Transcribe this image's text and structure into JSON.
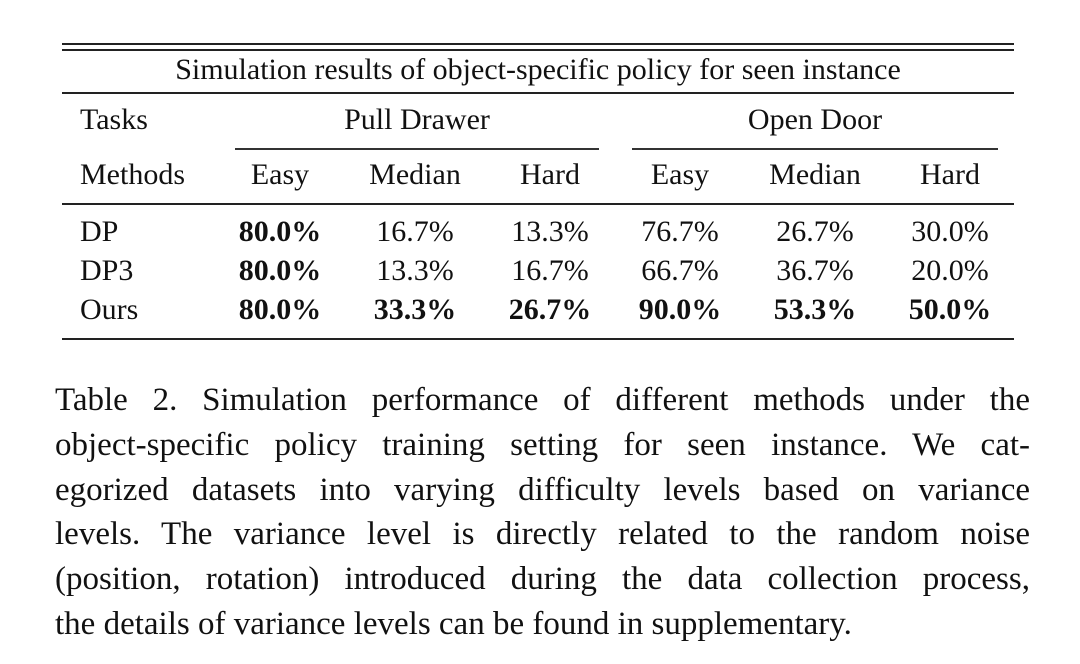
{
  "table": {
    "title": "Simulation results of object-specific policy for seen instance",
    "tasks_label": "Tasks",
    "methods_label": "Methods",
    "groups": [
      "Pull Drawer",
      "Open Door"
    ],
    "levels": [
      "Easy",
      "Median",
      "Hard",
      "Easy",
      "Median",
      "Hard"
    ],
    "rows": [
      {
        "method": "DP",
        "values": [
          "80.0%",
          "16.7%",
          "13.3%",
          "76.7%",
          "26.7%",
          "30.0%"
        ]
      },
      {
        "method": "DP3",
        "values": [
          "80.0%",
          "13.3%",
          "16.7%",
          "66.7%",
          "36.7%",
          "20.0%"
        ]
      },
      {
        "method": "Ours",
        "values": [
          "80.0%",
          "33.3%",
          "26.7%",
          "90.0%",
          "53.3%",
          "50.0%"
        ]
      }
    ]
  },
  "caption": {
    "lines": [
      "Table 2.  Simulation performance of different methods under the",
      "object-specific policy training setting for seen instance.  We cat-",
      "egorized datasets into varying difficulty levels based on variance",
      "levels.  The variance level is directly related to the random noise",
      "(position, rotation) introduced during the data collection process,",
      "the details of variance levels can be found in supplementary."
    ]
  }
}
